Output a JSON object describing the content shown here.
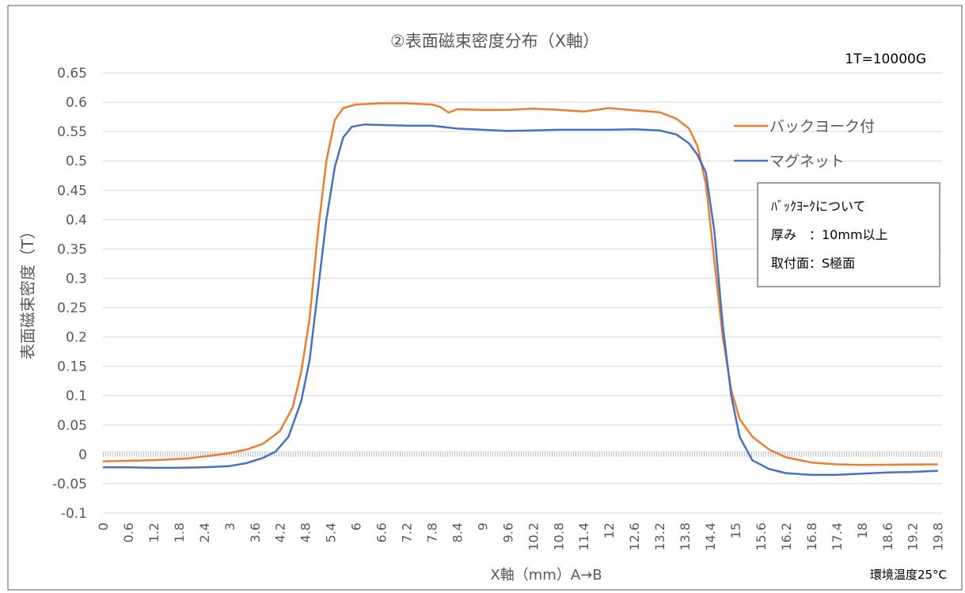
{
  "chart_data": {
    "type": "line",
    "title": "②表面磁束密度分布（X軸）",
    "xlabel": "X軸（mm）A→B",
    "ylabel": "表面磁束密度（T）",
    "x_range": [
      0,
      19.9
    ],
    "x_tick_labels": [
      "0",
      "0.6",
      "1.2",
      "1.8",
      "2.4",
      "3",
      "3.6",
      "4.2",
      "4.8",
      "5.4",
      "6",
      "6.6",
      "7.2",
      "7.8",
      "8.4",
      "9",
      "9.6",
      "10.2",
      "10.8",
      "11.4",
      "12",
      "12.6",
      "13.2",
      "13.8",
      "14.4",
      "15",
      "15.6",
      "16.2",
      "16.8",
      "17.4",
      "18",
      "18.6",
      "19.2",
      "19.8"
    ],
    "ylim": [
      -0.1,
      0.65
    ],
    "y_tick_labels": [
      "0.65",
      "0.6",
      "0.55",
      "0.5",
      "0.45",
      "0.4",
      "0.35",
      "0.3",
      "0.25",
      "0.2",
      "0.15",
      "0.1",
      "0.05",
      "0",
      "-0.05",
      "-0.1"
    ],
    "grid": "horizontal",
    "legend_position": "right",
    "series": [
      {
        "name": "バックヨーク付",
        "color": "#ED7D31",
        "points": [
          [
            0,
            -0.012
          ],
          [
            1.2,
            -0.01
          ],
          [
            2.0,
            -0.007
          ],
          [
            2.6,
            -0.002
          ],
          [
            3.0,
            0.002
          ],
          [
            3.4,
            0.008
          ],
          [
            3.8,
            0.018
          ],
          [
            4.2,
            0.04
          ],
          [
            4.5,
            0.08
          ],
          [
            4.7,
            0.14
          ],
          [
            4.9,
            0.23
          ],
          [
            5.1,
            0.38
          ],
          [
            5.3,
            0.5
          ],
          [
            5.5,
            0.57
          ],
          [
            5.7,
            0.59
          ],
          [
            6.0,
            0.596
          ],
          [
            6.6,
            0.598
          ],
          [
            7.2,
            0.598
          ],
          [
            7.8,
            0.596
          ],
          [
            8.0,
            0.592
          ],
          [
            8.2,
            0.582
          ],
          [
            8.4,
            0.588
          ],
          [
            9.0,
            0.587
          ],
          [
            9.6,
            0.587
          ],
          [
            10.2,
            0.589
          ],
          [
            10.8,
            0.587
          ],
          [
            11.4,
            0.584
          ],
          [
            12.0,
            0.59
          ],
          [
            12.6,
            0.586
          ],
          [
            13.2,
            0.583
          ],
          [
            13.6,
            0.572
          ],
          [
            13.9,
            0.555
          ],
          [
            14.1,
            0.525
          ],
          [
            14.3,
            0.46
          ],
          [
            14.5,
            0.33
          ],
          [
            14.7,
            0.2
          ],
          [
            14.9,
            0.11
          ],
          [
            15.1,
            0.06
          ],
          [
            15.4,
            0.03
          ],
          [
            15.8,
            0.008
          ],
          [
            16.2,
            -0.005
          ],
          [
            16.8,
            -0.014
          ],
          [
            17.4,
            -0.017
          ],
          [
            18.0,
            -0.018
          ],
          [
            19.8,
            -0.017
          ]
        ]
      },
      {
        "name": "マグネット",
        "color": "#4472C4",
        "points": [
          [
            0,
            -0.022
          ],
          [
            0.6,
            -0.022
          ],
          [
            1.2,
            -0.023
          ],
          [
            1.8,
            -0.023
          ],
          [
            2.4,
            -0.022
          ],
          [
            3.0,
            -0.02
          ],
          [
            3.4,
            -0.015
          ],
          [
            3.8,
            -0.006
          ],
          [
            4.1,
            0.005
          ],
          [
            4.4,
            0.03
          ],
          [
            4.7,
            0.09
          ],
          [
            4.9,
            0.16
          ],
          [
            5.1,
            0.28
          ],
          [
            5.3,
            0.4
          ],
          [
            5.5,
            0.49
          ],
          [
            5.7,
            0.54
          ],
          [
            5.9,
            0.558
          ],
          [
            6.2,
            0.562
          ],
          [
            7.2,
            0.56
          ],
          [
            7.8,
            0.56
          ],
          [
            8.4,
            0.555
          ],
          [
            9.0,
            0.553
          ],
          [
            9.6,
            0.551
          ],
          [
            10.2,
            0.552
          ],
          [
            10.8,
            0.553
          ],
          [
            11.4,
            0.553
          ],
          [
            12.0,
            0.553
          ],
          [
            12.6,
            0.554
          ],
          [
            13.2,
            0.552
          ],
          [
            13.6,
            0.545
          ],
          [
            13.9,
            0.53
          ],
          [
            14.1,
            0.51
          ],
          [
            14.3,
            0.48
          ],
          [
            14.5,
            0.38
          ],
          [
            14.7,
            0.22
          ],
          [
            14.9,
            0.1
          ],
          [
            15.1,
            0.03
          ],
          [
            15.4,
            -0.01
          ],
          [
            15.8,
            -0.025
          ],
          [
            16.2,
            -0.032
          ],
          [
            16.8,
            -0.035
          ],
          [
            17.4,
            -0.035
          ],
          [
            18.0,
            -0.033
          ],
          [
            18.6,
            -0.031
          ],
          [
            19.2,
            -0.03
          ],
          [
            19.8,
            -0.028
          ]
        ]
      }
    ],
    "annotations": {
      "unit_note": "1T=10000G",
      "temperature_note": "環境温度25°C",
      "backyoke_box": {
        "heading": "ﾊﾞｯｸﾖｰｸについて",
        "line1": "厚み　：10mm以上",
        "line2": "取付面：S極面"
      }
    }
  }
}
